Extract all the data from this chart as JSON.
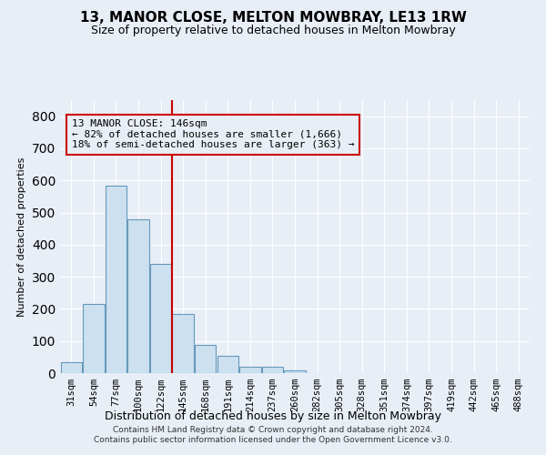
{
  "title": "13, MANOR CLOSE, MELTON MOWBRAY, LE13 1RW",
  "subtitle": "Size of property relative to detached houses in Melton Mowbray",
  "xlabel": "Distribution of detached houses by size in Melton Mowbray",
  "ylabel": "Number of detached properties",
  "footnote1": "Contains HM Land Registry data © Crown copyright and database right 2024.",
  "footnote2": "Contains public sector information licensed under the Open Government Licence v3.0.",
  "bar_color": "#cce0f0",
  "bar_edge_color": "#6699bb",
  "background_color": "#e8eef6",
  "grid_color": "#ffffff",
  "annotation_box_color": "#cc0000",
  "vline_color": "#cc0000",
  "categories": [
    "31sqm",
    "54sqm",
    "77sqm",
    "100sqm",
    "122sqm",
    "145sqm",
    "168sqm",
    "191sqm",
    "214sqm",
    "237sqm",
    "260sqm",
    "282sqm",
    "305sqm",
    "328sqm",
    "351sqm",
    "374sqm",
    "397sqm",
    "419sqm",
    "442sqm",
    "465sqm",
    "488sqm"
  ],
  "values": [
    35,
    215,
    585,
    480,
    340,
    185,
    88,
    55,
    20,
    20,
    8,
    0,
    0,
    0,
    0,
    0,
    0,
    0,
    0,
    0,
    0
  ],
  "vline_bin_index": 5,
  "annotation_text1": "13 MANOR CLOSE: 146sqm",
  "annotation_text2": "← 82% of detached houses are smaller (1,666)",
  "annotation_text3": "18% of semi-detached houses are larger (363) →",
  "ylim": [
    0,
    850
  ],
  "yticks": [
    0,
    100,
    200,
    300,
    400,
    500,
    600,
    700,
    800
  ]
}
